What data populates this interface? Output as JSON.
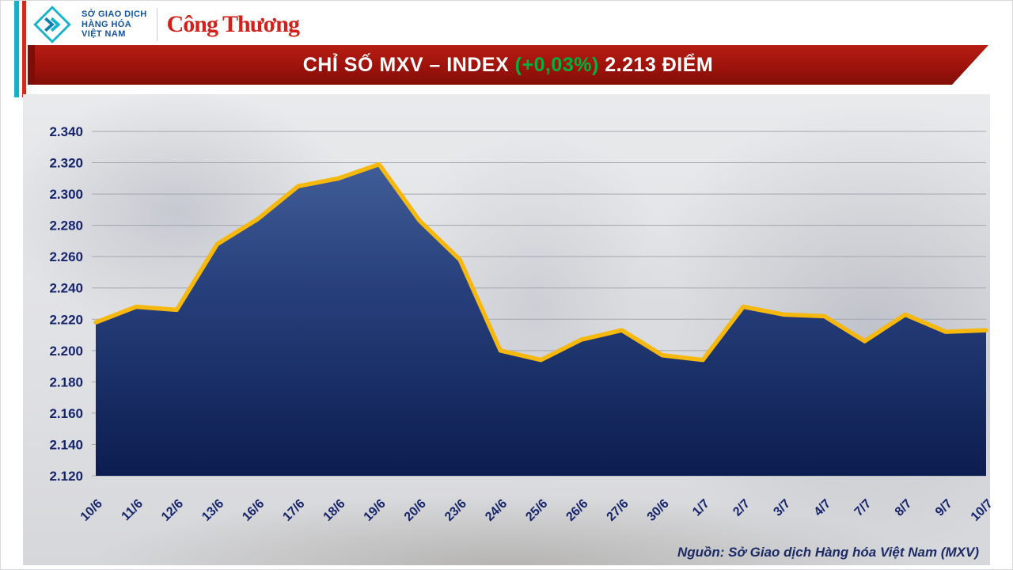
{
  "header": {
    "mxv_org_lines": [
      "SỞ GIAO DỊCH",
      "HÀNG HÓA",
      "VIỆT NAM"
    ],
    "congthuong_wordmark": "Công Thương"
  },
  "banner": {
    "title_prefix": "CHỈ SỐ MXV – INDEX ",
    "change": "(+0,03%)",
    "title_suffix": " 2.213 ĐIỂM",
    "bg_color": "#9d130c",
    "change_color": "#00b140",
    "text_color": "#ffffff"
  },
  "chart_data": {
    "type": "area",
    "title": "CHỈ SỐ MXV – INDEX (+0,03%) 2.213 ĐIỂM",
    "x": [
      "10/6",
      "11/6",
      "12/6",
      "13/6",
      "16/6",
      "17/6",
      "18/6",
      "19/6",
      "20/6",
      "23/6",
      "24/6",
      "25/6",
      "26/6",
      "27/6",
      "30/6",
      "1/7",
      "2/7",
      "3/7",
      "4/7",
      "7/7",
      "8/7",
      "9/7",
      "10/7"
    ],
    "values": [
      2218,
      2228,
      2226,
      2268,
      2284,
      2305,
      2310,
      2319,
      2283,
      2258,
      2200,
      2194,
      2207,
      2213,
      2197,
      2194,
      2228,
      2223,
      2222,
      2206,
      2223,
      2212,
      2213
    ],
    "ylim": [
      2120,
      2340
    ],
    "ytick_labels": [
      "2.340",
      "2.320",
      "2.300",
      "2.280",
      "2.260",
      "2.240",
      "2.220",
      "2.200",
      "2.180",
      "2.160",
      "2.140",
      "2.120"
    ],
    "grid": "horizontal",
    "legend": "none",
    "line_color": "#f7b80d",
    "area_fill_top": "#47649e",
    "area_fill_mid": "#27407c",
    "area_fill_bottom": "#0c1d50",
    "axis_label_color": "#15246b"
  },
  "footer": {
    "source": "Nguồn: Sở Giao dịch Hàng hóa Việt Nam (MXV)"
  }
}
